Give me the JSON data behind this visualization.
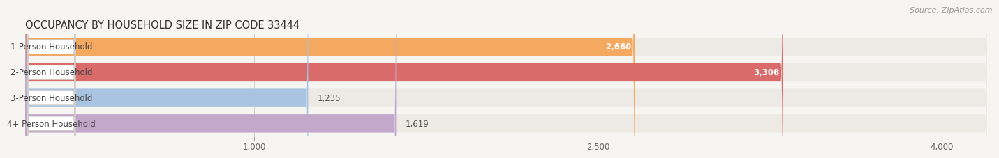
{
  "title": "OCCUPANCY BY HOUSEHOLD SIZE IN ZIP CODE 33444",
  "source": "Source: ZipAtlas.com",
  "categories": [
    "1-Person Household",
    "2-Person Household",
    "3-Person Household",
    "4+ Person Household"
  ],
  "values": [
    2660,
    3308,
    1235,
    1619
  ],
  "bar_colors": [
    "#F5A860",
    "#D96B6B",
    "#A8C4E0",
    "#C4A8CC"
  ],
  "bar_bg_color": "#EDEAE6",
  "background_color": "#F7F5F2",
  "xlim_max": 4200,
  "xticks": [
    1000,
    2500,
    4000
  ],
  "bar_height": 0.72,
  "title_fontsize": 10.5,
  "source_fontsize": 8,
  "tick_fontsize": 8.5,
  "cat_fontsize": 8.5,
  "val_fontsize": 8.5
}
